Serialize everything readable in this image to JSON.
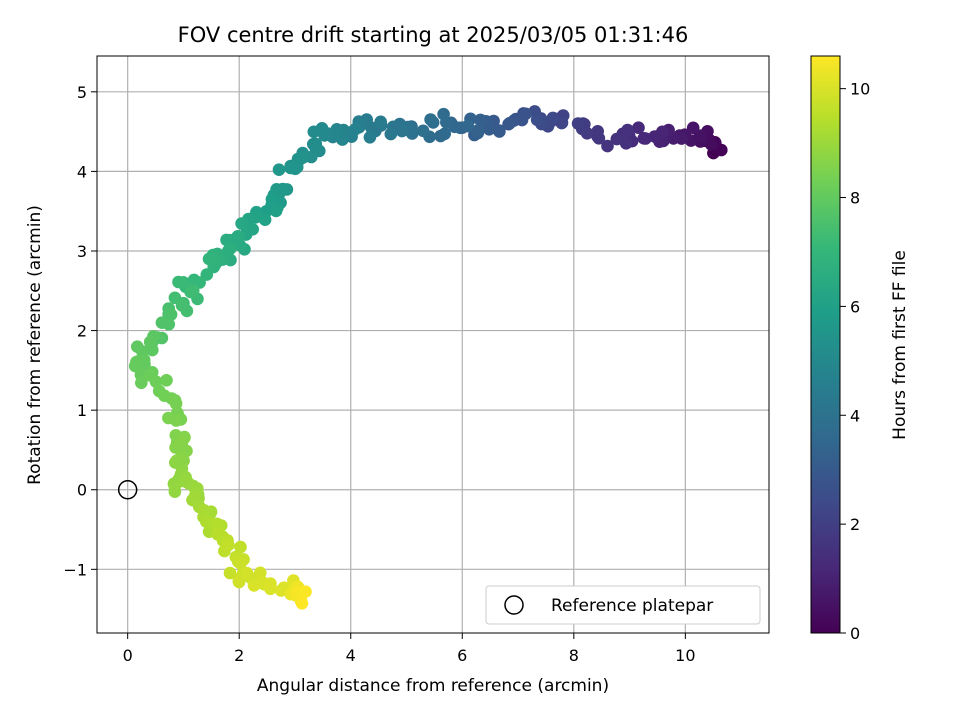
{
  "chart_data": {
    "type": "scatter",
    "title": "FOV centre drift starting at 2025/03/05 01:31:46",
    "xlabel": "Angular distance from reference (arcmin)",
    "ylabel": "Rotation from reference (arcmin)",
    "xlim": [
      -0.55,
      11.5
    ],
    "ylim": [
      -1.8,
      5.45
    ],
    "xticks": [
      0,
      2,
      4,
      6,
      8,
      10
    ],
    "yticks": [
      -1,
      0,
      1,
      2,
      3,
      4,
      5
    ],
    "grid": true,
    "legend": {
      "placement": "lower-right",
      "entries": [
        "Reference platepar"
      ]
    },
    "reference_point": {
      "x": 0,
      "y": 0,
      "marker": "open-circle"
    },
    "colorbar": {
      "label": "Hours from first FF file",
      "colormap": "viridis",
      "range": [
        0,
        10.6
      ],
      "ticks": [
        0,
        2,
        4,
        6,
        8,
        10
      ]
    },
    "colormap_stops": [
      "#440154",
      "#482878",
      "#3e4989",
      "#31688e",
      "#26828e",
      "#1f9e89",
      "#35b779",
      "#6ece58",
      "#b5de2b",
      "#fde725"
    ],
    "anchors": [
      {
        "x": 10.7,
        "y": 4.25,
        "t": 0.0
      },
      {
        "x": 10.3,
        "y": 4.45,
        "t": 0.4
      },
      {
        "x": 9.6,
        "y": 4.4,
        "t": 1.0
      },
      {
        "x": 8.8,
        "y": 4.45,
        "t": 1.5
      },
      {
        "x": 8.0,
        "y": 4.6,
        "t": 2.0
      },
      {
        "x": 7.2,
        "y": 4.7,
        "t": 2.6
      },
      {
        "x": 6.5,
        "y": 4.55,
        "t": 3.1
      },
      {
        "x": 5.8,
        "y": 4.55,
        "t": 3.6
      },
      {
        "x": 5.0,
        "y": 4.55,
        "t": 4.0
      },
      {
        "x": 4.2,
        "y": 4.5,
        "t": 4.5
      },
      {
        "x": 3.5,
        "y": 4.45,
        "t": 5.0
      },
      {
        "x": 3.0,
        "y": 4.1,
        "t": 5.4
      },
      {
        "x": 2.7,
        "y": 3.65,
        "t": 5.8
      },
      {
        "x": 2.2,
        "y": 3.3,
        "t": 6.2
      },
      {
        "x": 1.8,
        "y": 3.0,
        "t": 6.6
      },
      {
        "x": 1.3,
        "y": 2.65,
        "t": 7.0
      },
      {
        "x": 0.9,
        "y": 2.35,
        "t": 7.4
      },
      {
        "x": 0.45,
        "y": 1.85,
        "t": 7.8
      },
      {
        "x": 0.15,
        "y": 1.6,
        "t": 8.05
      },
      {
        "x": 0.85,
        "y": 1.1,
        "t": 8.35
      },
      {
        "x": 0.95,
        "y": 0.55,
        "t": 8.6
      },
      {
        "x": 0.9,
        "y": 0.15,
        "t": 8.8
      },
      {
        "x": 1.15,
        "y": -0.1,
        "t": 9.0
      },
      {
        "x": 1.45,
        "y": -0.45,
        "t": 9.3
      },
      {
        "x": 1.9,
        "y": -0.75,
        "t": 9.6
      },
      {
        "x": 2.0,
        "y": -1.1,
        "t": 9.85
      },
      {
        "x": 2.9,
        "y": -1.2,
        "t": 10.1
      },
      {
        "x": 3.2,
        "y": -1.35,
        "t": 10.6
      }
    ],
    "point_count": 300
  }
}
